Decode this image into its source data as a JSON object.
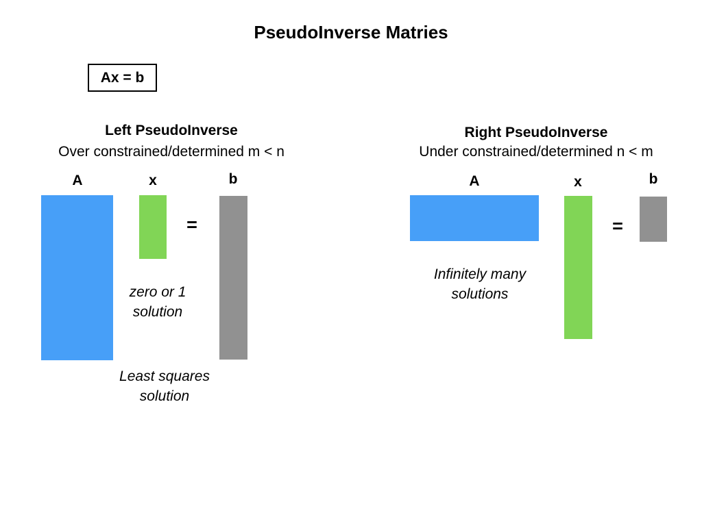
{
  "title": "PseudoInverse Matries",
  "equation": "Ax = b",
  "colors": {
    "A": "#479ff8",
    "x": "#81d556",
    "b": "#919191"
  },
  "left": {
    "heading": "Left PseudoInverse",
    "subheading": "Over constrained/determined m < n",
    "label_A": "A",
    "label_x": "x",
    "label_b": "b",
    "equals": "=",
    "note_x_line1": "zero or 1",
    "note_x_line2": "solution",
    "note_ls_line1": "Least squares",
    "note_ls_line2": "solution"
  },
  "right": {
    "heading": "Right PseudoInverse",
    "subheading": "Under constrained/determined n < m",
    "label_A": "A",
    "label_x": "x",
    "label_b": "b",
    "equals": "=",
    "note_line1": "Infinitely many",
    "note_line2": "solutions"
  }
}
